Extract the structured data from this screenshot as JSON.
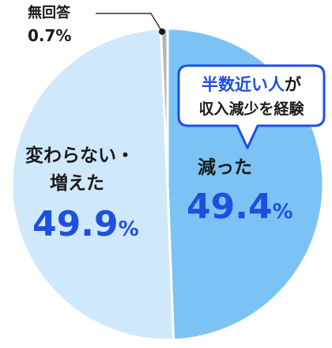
{
  "chart_data": {
    "type": "pie",
    "start_angle_deg": -90,
    "direction": "clockwise",
    "slices": [
      {
        "label": "減った",
        "value": 49.4,
        "value_text": "49.4",
        "color": "#7cc3f5"
      },
      {
        "label_lines": [
          "変わらない・",
          "増えた"
        ],
        "value": 49.9,
        "value_text": "49.9",
        "color": "#cfe8fb"
      },
      {
        "label": "無回答",
        "value": 0.7,
        "value_text": "0.7%",
        "color": "#b5b5b5"
      }
    ],
    "percent_sign": "%",
    "callout": {
      "line1_highlight": "半数近い人",
      "line1_rest": "が",
      "line2": "収入減少を経験",
      "border_color": "#1f4fe0"
    }
  }
}
